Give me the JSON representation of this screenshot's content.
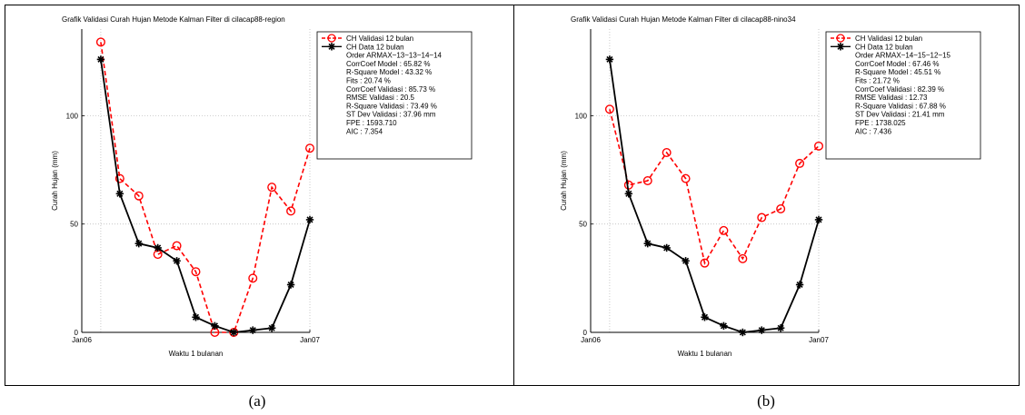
{
  "captions": [
    "(a)",
    "(b)"
  ],
  "colors": {
    "validation": "#ff0000",
    "data": "#000000",
    "grid": "#b4b4b4"
  },
  "chart_data": [
    {
      "type": "line",
      "title": "Grafik Validasi Curah Hujan Metode Kalman Filter di cilacap88-region",
      "xlabel": "Waktu 1 bulanan",
      "ylabel": "Curah Hujan (mm)",
      "x_tick_labels": [
        "Jan06",
        "Jan07"
      ],
      "y_ticks": [
        0,
        50,
        100
      ],
      "ylim": [
        0,
        140
      ],
      "grid": true,
      "legend_position": "top-right",
      "x": [
        1,
        2,
        3,
        4,
        5,
        6,
        7,
        8,
        9,
        10,
        11,
        12
      ],
      "series": [
        {
          "name": "CH Validasi 12 bulan",
          "style": "dashed-circle",
          "color": "#ff0000",
          "values": [
            134,
            71,
            63,
            36,
            40,
            28,
            0,
            0,
            25,
            67,
            56,
            85
          ]
        },
        {
          "name": "CH Data 12 bulan",
          "style": "solid-star",
          "color": "#000000",
          "values": [
            126,
            64,
            41,
            39,
            33,
            7,
            3,
            0,
            1,
            2,
            22,
            52
          ]
        }
      ],
      "legend_info": [
        "Order ARMAX~13~13~14~14",
        "CorrCoef Model : 65.82 %",
        "R-Square Model : 43.32 %",
        "Fits : 20.74 %",
        "CorrCoef Validasi : 85.73 %",
        "RMSE Validasi : 20.5",
        "R-Square Validasi : 73.49 %",
        "ST Dev Validasi : 37.96 mm",
        "FPE : 1593.710",
        "AIC : 7.354"
      ]
    },
    {
      "type": "line",
      "title": "Grafik Validasi Curah Hujan Metode Kalman Filter di cilacap88-nino34",
      "xlabel": "Waktu 1 bulanan",
      "ylabel": "Curah Hujan (mm)",
      "x_tick_labels": [
        "Jan06",
        "Jan07"
      ],
      "y_ticks": [
        0,
        50,
        100
      ],
      "ylim": [
        0,
        140
      ],
      "grid": true,
      "legend_position": "top-right",
      "x": [
        1,
        2,
        3,
        4,
        5,
        6,
        7,
        8,
        9,
        10,
        11,
        12
      ],
      "series": [
        {
          "name": "CH Validasi 12 bulan",
          "style": "dashed-circle",
          "color": "#ff0000",
          "values": [
            103,
            68,
            70,
            83,
            71,
            32,
            47,
            34,
            53,
            57,
            78,
            86
          ]
        },
        {
          "name": "CH Data 12 bulan",
          "style": "solid-star",
          "color": "#000000",
          "values": [
            126,
            64,
            41,
            39,
            33,
            7,
            3,
            0,
            1,
            2,
            22,
            52
          ]
        }
      ],
      "legend_info": [
        "Order ARMAX~14~15~12~15",
        "CorrCoef Model : 67.46 %",
        "R-Square Model : 45.51 %",
        "Fits : 21.72 %",
        "CorrCoef Validasi : 82.39 %",
        "RMSE Validasi : 12.73",
        "R-Square Validasi : 67.88 %",
        "ST Dev Validasi : 21.41 mm",
        "FPE : 1738.025",
        "AIC : 7.436"
      ]
    }
  ]
}
